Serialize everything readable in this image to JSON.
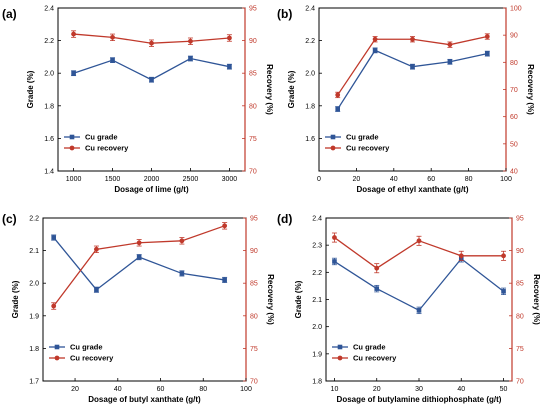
{
  "colors": {
    "grade": "#2f5597",
    "recovery": "#c0392b",
    "right_axis": "#c0392b"
  },
  "chart_data": [
    {
      "type": "line",
      "panel_label": "(a)",
      "xlabel": "Dosage of lime (g/t)",
      "ylabel": "Grade (%)",
      "y2label": "Recovery (%)",
      "xlim": [
        800,
        3200
      ],
      "xticks": [
        1000,
        1500,
        2000,
        2500,
        3000
      ],
      "ylim": [
        1.4,
        2.4
      ],
      "yticks": [
        1.4,
        1.6,
        1.8,
        2.0,
        2.2,
        2.4
      ],
      "y2lim": [
        70,
        95
      ],
      "y2ticks": [
        70,
        75,
        80,
        85,
        90,
        95
      ],
      "legend_position": "bottom-left",
      "series": [
        {
          "name": "Cu grade",
          "axis": "left",
          "x": [
            1000,
            1500,
            2000,
            2500,
            3000
          ],
          "y": [
            2.0,
            2.08,
            1.96,
            2.09,
            2.04
          ],
          "err": 0.015
        },
        {
          "name": "Cu recovery",
          "axis": "right",
          "x": [
            1000,
            1500,
            2000,
            2500,
            3000
          ],
          "y": [
            91.0,
            90.5,
            89.6,
            89.9,
            90.4
          ],
          "err": 0.5
        }
      ]
    },
    {
      "type": "line",
      "panel_label": "(b)",
      "xlabel": "Dosage of ethyl xanthate (g/t)",
      "ylabel": "Grade (%)",
      "y2label": "Recovery (%)",
      "xlim": [
        0,
        100
      ],
      "xticks": [
        0,
        20,
        40,
        60,
        80,
        100
      ],
      "ylim": [
        1.4,
        2.4
      ],
      "yticks": [
        1.6,
        1.8,
        2.0,
        2.2,
        2.4
      ],
      "y2lim": [
        40,
        100
      ],
      "y2ticks": [
        40,
        50,
        60,
        70,
        80,
        90,
        100
      ],
      "legend_position": "bottom-left",
      "series": [
        {
          "name": "Cu grade",
          "axis": "left",
          "x": [
            10,
            30,
            50,
            70,
            90
          ],
          "y": [
            1.78,
            2.14,
            2.04,
            2.07,
            2.12
          ],
          "err": 0.015
        },
        {
          "name": "Cu recovery",
          "axis": "right",
          "x": [
            10,
            30,
            50,
            70,
            90
          ],
          "y": [
            68.0,
            88.5,
            88.5,
            86.5,
            89.5
          ],
          "err": 1.0
        }
      ]
    },
    {
      "type": "line",
      "panel_label": "(c)",
      "xlabel": "Dosage of butyl xanthate (g/t)",
      "ylabel": "Grade (%)",
      "y2label": "Recovery (%)",
      "xlim": [
        5,
        100
      ],
      "xticks": [
        20,
        40,
        60,
        80,
        100
      ],
      "ylim": [
        1.7,
        2.2
      ],
      "yticks": [
        1.7,
        1.8,
        1.9,
        2.0,
        2.1,
        2.2
      ],
      "y2lim": [
        70,
        95
      ],
      "y2ticks": [
        70,
        75,
        80,
        85,
        90,
        95
      ],
      "legend_position": "bottom-left",
      "series": [
        {
          "name": "Cu grade",
          "axis": "left",
          "x": [
            10,
            30,
            50,
            70,
            90
          ],
          "y": [
            2.14,
            1.98,
            2.08,
            2.03,
            2.01
          ],
          "err": 0.008
        },
        {
          "name": "Cu recovery",
          "axis": "right",
          "x": [
            10,
            30,
            50,
            70,
            90
          ],
          "y": [
            81.5,
            90.2,
            91.2,
            91.5,
            93.8
          ],
          "err": 0.5
        }
      ]
    },
    {
      "type": "line",
      "panel_label": "(d)",
      "xlabel": "Dosage of butylamine dithiophosphate (g/t)",
      "ylabel": "Grade (%)",
      "y2label": "Recovery (%)",
      "xlim": [
        8,
        52
      ],
      "xticks": [
        10,
        20,
        30,
        40,
        50
      ],
      "ylim": [
        1.8,
        2.4
      ],
      "yticks": [
        1.8,
        1.9,
        2.0,
        2.1,
        2.2,
        2.3,
        2.4
      ],
      "y2lim": [
        70,
        95
      ],
      "y2ticks": [
        70,
        75,
        80,
        85,
        90,
        95
      ],
      "legend_position": "bottom-left",
      "series": [
        {
          "name": "Cu grade",
          "axis": "left",
          "x": [
            10,
            20,
            30,
            40,
            50
          ],
          "y": [
            2.24,
            2.14,
            2.06,
            2.25,
            2.13
          ],
          "err": 0.012
        },
        {
          "name": "Cu recovery",
          "axis": "right",
          "x": [
            10,
            20,
            30,
            40,
            50
          ],
          "y": [
            92.0,
            87.3,
            91.5,
            89.2,
            89.2
          ],
          "err": 0.7
        }
      ]
    }
  ]
}
